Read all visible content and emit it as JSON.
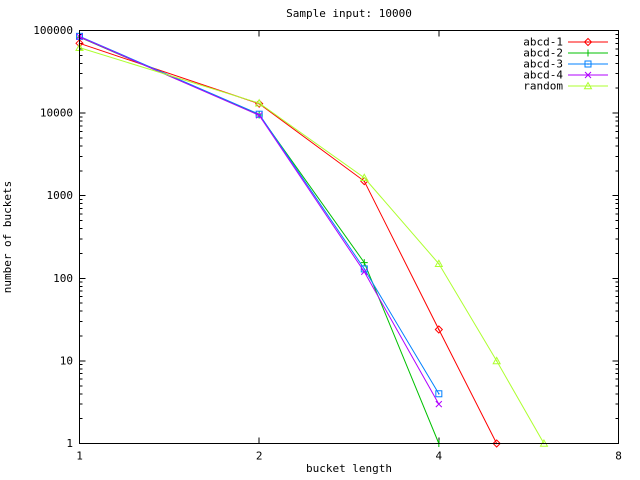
{
  "title": "Sample input: 10000",
  "colors": {
    "foreground": "#000000",
    "background": "#ffffff",
    "abcd1": "#ff0000",
    "abcd2": "#00c000",
    "abcd3": "#0080ff",
    "abcd4": "#b000ff",
    "random": "#adff2f"
  },
  "chart_data": {
    "type": "line",
    "title": "Sample input: 10000",
    "xlabel": "bucket length",
    "ylabel": "number of buckets",
    "x_scale": "log2",
    "y_scale": "log10",
    "xlim": [
      1,
      8
    ],
    "ylim": [
      1,
      100000
    ],
    "x_ticks": [
      1,
      2,
      4,
      8
    ],
    "y_ticks": [
      1,
      10,
      100,
      1000,
      10000,
      100000
    ],
    "grid": false,
    "legend_position": "top-right-inside",
    "series": [
      {
        "name": "abcd-1",
        "color": "#ff0000",
        "marker": "diamond",
        "x": [
          1,
          2,
          3,
          4,
          5
        ],
        "y": [
          70000,
          13000,
          1500,
          24,
          1
        ]
      },
      {
        "name": "abcd-2",
        "color": "#00c000",
        "marker": "plus",
        "x": [
          1,
          2,
          3,
          4
        ],
        "y": [
          83000,
          9500,
          155,
          1
        ]
      },
      {
        "name": "abcd-3",
        "color": "#0080ff",
        "marker": "square",
        "x": [
          1,
          2,
          3,
          4
        ],
        "y": [
          85000,
          9700,
          130,
          4
        ]
      },
      {
        "name": "abcd-4",
        "color": "#b000ff",
        "marker": "cross",
        "x": [
          1,
          2,
          3,
          4
        ],
        "y": [
          84000,
          9400,
          120,
          3
        ]
      },
      {
        "name": "random",
        "color": "#adff2f",
        "marker": "triangle",
        "x": [
          1,
          2,
          3,
          4,
          5,
          6
        ],
        "y": [
          62000,
          13200,
          1650,
          150,
          10,
          1
        ]
      }
    ]
  }
}
